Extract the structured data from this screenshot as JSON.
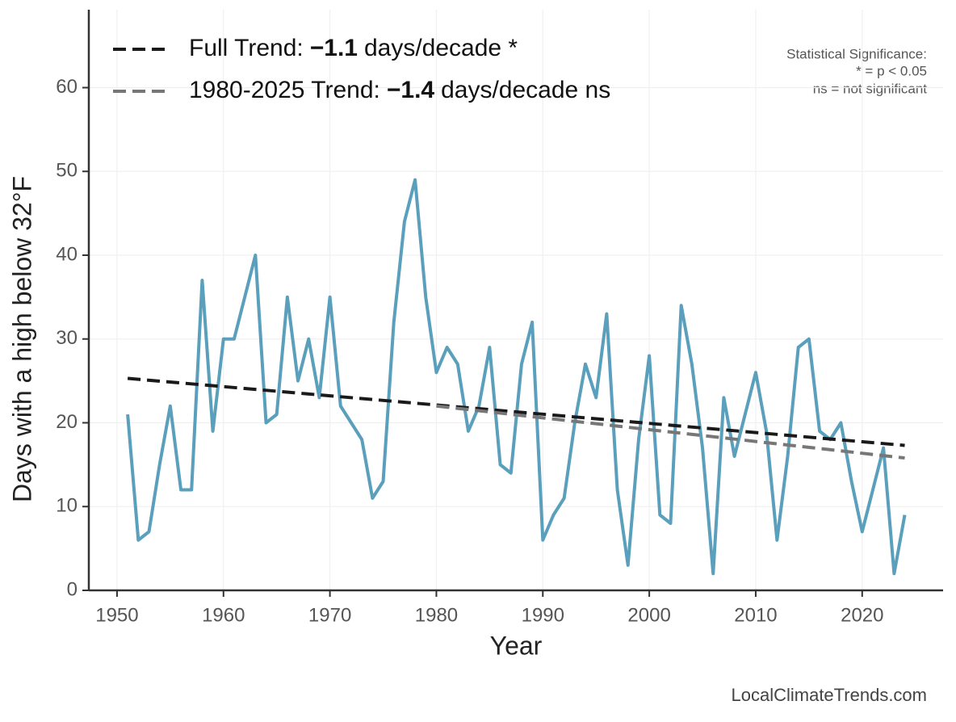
{
  "chart_data": {
    "type": "line",
    "x_label": "Year",
    "y_label": "Days with a high below 32°F",
    "annotations": [
      "Statistical Significance:",
      "* = p < 0.05",
      "ns = not significant"
    ],
    "source": "LocalClimateTrends.com",
    "xlim": [
      1947.35,
      2027.6
    ],
    "ylim": [
      0,
      69.3
    ],
    "xticks": [
      1950,
      1960,
      1970,
      1980,
      1990,
      2000,
      2010,
      2020
    ],
    "yticks": [
      0,
      10,
      20,
      30,
      40,
      50,
      60
    ],
    "grid": true,
    "legend": "upper left",
    "series": [
      {
        "color": "#5a9fbb",
        "dash": false,
        "x": [
          1951,
          1952,
          1953,
          1954,
          1955,
          1956,
          1957,
          1958,
          1959,
          1960,
          1961,
          1962,
          1963,
          1964,
          1965,
          1966,
          1967,
          1968,
          1969,
          1970,
          1971,
          1972,
          1973,
          1974,
          1975,
          1976,
          1977,
          1978,
          1979,
          1980,
          1981,
          1982,
          1983,
          1984,
          1985,
          1986,
          1987,
          1988,
          1989,
          1990,
          1991,
          1992,
          1993,
          1994,
          1995,
          1996,
          1997,
          1998,
          1999,
          2000,
          2001,
          2002,
          2003,
          2004,
          2005,
          2006,
          2007,
          2008,
          2009,
          2010,
          2011,
          2012,
          2013,
          2014,
          2015,
          2016,
          2017,
          2018,
          2019,
          2020,
          2021,
          2022,
          2023,
          2024
        ],
        "values": [
          21,
          6,
          7,
          15,
          22,
          12,
          12,
          37,
          19,
          30,
          30,
          35,
          40,
          20,
          21,
          35,
          25,
          30,
          23,
          35,
          22,
          20,
          18,
          11,
          13,
          32,
          44,
          49,
          35,
          26,
          29,
          27,
          19,
          22,
          29,
          15,
          14,
          27,
          32,
          6,
          9,
          11,
          20,
          27,
          23,
          33,
          12,
          3,
          18,
          28,
          9,
          8,
          34,
          27,
          17,
          2,
          23,
          16,
          21,
          26,
          19,
          6,
          16,
          29,
          30,
          19,
          18,
          20,
          13,
          7,
          12,
          17,
          2,
          9
        ]
      },
      {
        "name": [
          "Full Trend:",
          "−1.1",
          "days/decade *"
        ],
        "color": "#1a1a1a",
        "dash": true,
        "x": [
          1951,
          2024
        ],
        "values": [
          25.3,
          17.3
        ]
      },
      {
        "name": [
          "1980-2025 Trend:",
          "−1.4",
          "days/decade ns"
        ],
        "color": "#777777",
        "dash": true,
        "x": [
          1980,
          2024
        ],
        "values": [
          22.0,
          15.8
        ]
      }
    ]
  }
}
